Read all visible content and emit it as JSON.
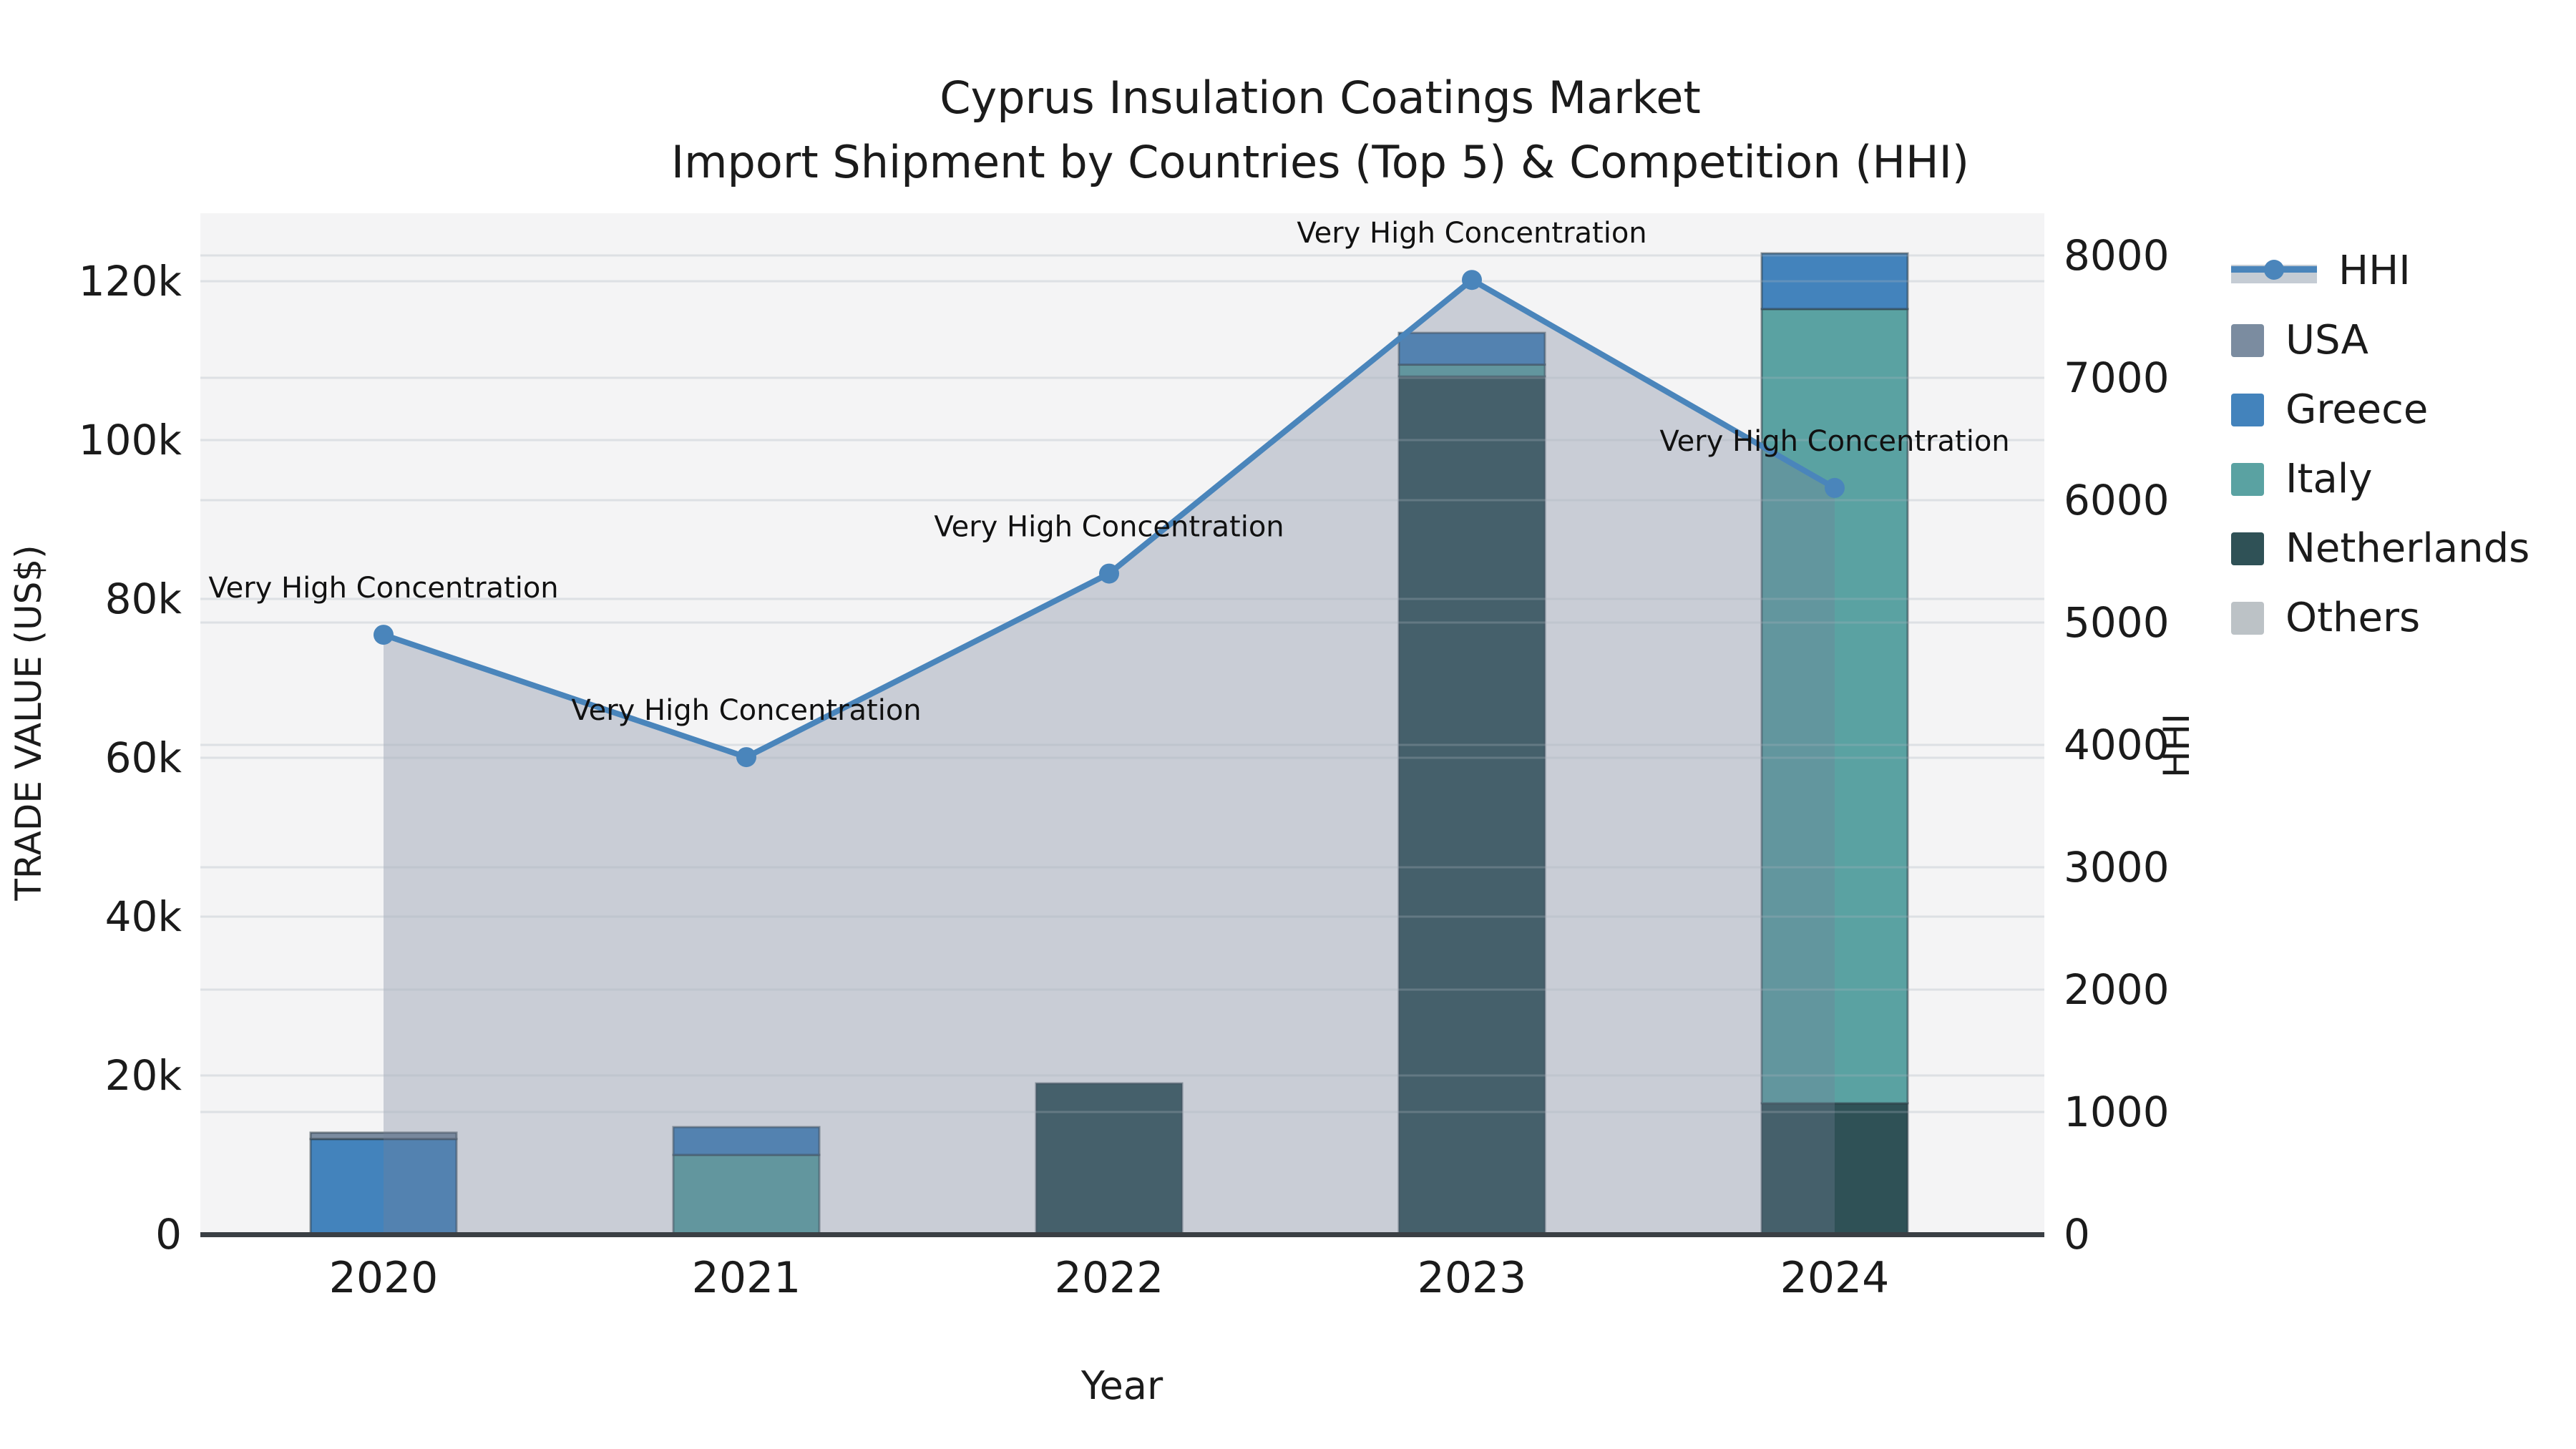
{
  "title": {
    "line1": "Cyprus Insulation Coatings Market",
    "line2": "Import Shipment by Countries (Top 5) & Competition (HHI)"
  },
  "legend": [
    {
      "label": "HHI",
      "type": "line",
      "color": "#4a85bb"
    },
    {
      "label": "USA",
      "type": "patch",
      "color": "#7b8ca0"
    },
    {
      "label": "Greece",
      "type": "patch",
      "color": "#4383bc"
    },
    {
      "label": "Italy",
      "type": "patch",
      "color": "#5aa2a2"
    },
    {
      "label": "Netherlands",
      "type": "patch",
      "color": "#2f5156"
    },
    {
      "label": "Others",
      "type": "patch",
      "color": "#bcc2c6"
    }
  ],
  "chart_data": {
    "type": "combo_stacked_bar_line",
    "categories": [
      "2020",
      "2021",
      "2022",
      "2023",
      "2024"
    ],
    "bar_series": [
      {
        "name": "Netherlands",
        "color": "#2f5156",
        "values": [
          0,
          0,
          19000,
          108000,
          16500
        ]
      },
      {
        "name": "Italy",
        "color": "#5aa2a2",
        "values": [
          0,
          10000,
          0,
          1500,
          100000
        ]
      },
      {
        "name": "Greece",
        "color": "#4383bc",
        "values": [
          12000,
          3500,
          0,
          4000,
          7000
        ]
      },
      {
        "name": "USA",
        "color": "#7b8ca0",
        "values": [
          800,
          0,
          0,
          0,
          0
        ]
      }
    ],
    "line_series": {
      "name": "HHI",
      "axis": "right",
      "color": "#4a85bb",
      "values": [
        4900,
        3900,
        5400,
        7800,
        6100
      ],
      "point_annotation": "Very High Concentration"
    },
    "area_fill": {
      "name": "Others",
      "color": "#727f97",
      "opacity": 0.33,
      "follows": "HHI"
    },
    "left_axis": {
      "label": "TRADE VALUE (US$)",
      "tick_labels": [
        "0",
        "20k",
        "40k",
        "60k",
        "80k",
        "100k",
        "120k"
      ],
      "tick_values": [
        0,
        20000,
        40000,
        60000,
        80000,
        100000,
        120000
      ],
      "range": [
        0,
        128500
      ],
      "grid": true
    },
    "right_axis": {
      "label": "HHI",
      "tick_labels": [
        "0",
        "1000",
        "2000",
        "3000",
        "4000",
        "5000",
        "6000",
        "7000",
        "8000"
      ],
      "tick_values": [
        0,
        1000,
        2000,
        3000,
        4000,
        5000,
        6000,
        7000,
        8000
      ],
      "range": [
        0,
        8345
      ],
      "grid": true
    },
    "x_axis": {
      "label": "Year"
    },
    "legend_position": "upper right outside"
  }
}
